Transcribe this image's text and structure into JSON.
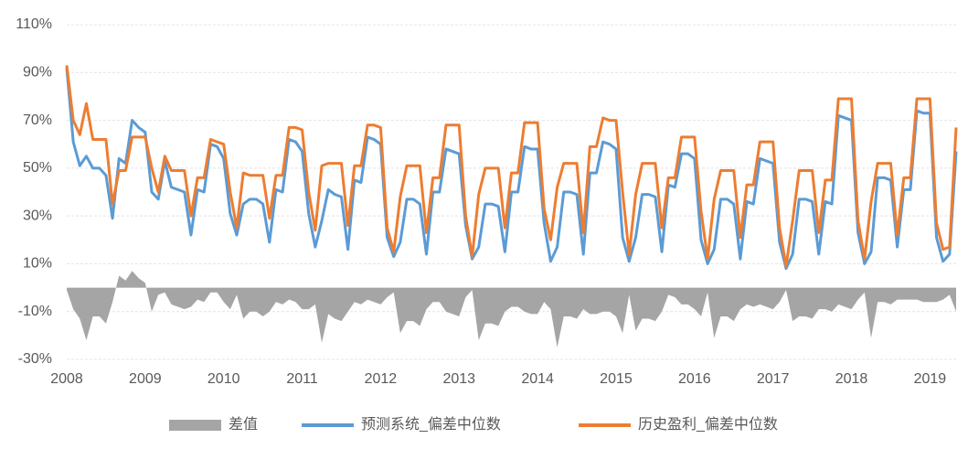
{
  "chart_data": {
    "type": "line",
    "categories": [
      "2008",
      null,
      null,
      null,
      null,
      null,
      null,
      null,
      null,
      null,
      null,
      null,
      "2009",
      null,
      null,
      null,
      null,
      null,
      null,
      null,
      null,
      null,
      null,
      null,
      "2010",
      null,
      null,
      null,
      null,
      null,
      null,
      null,
      null,
      null,
      null,
      null,
      "2011",
      null,
      null,
      null,
      null,
      null,
      null,
      null,
      null,
      null,
      null,
      null,
      "2012",
      null,
      null,
      null,
      null,
      null,
      null,
      null,
      null,
      null,
      null,
      null,
      "2013",
      null,
      null,
      null,
      null,
      null,
      null,
      null,
      null,
      null,
      null,
      null,
      "2014",
      null,
      null,
      null,
      null,
      null,
      null,
      null,
      null,
      null,
      null,
      null,
      "2015",
      null,
      null,
      null,
      null,
      null,
      null,
      null,
      null,
      null,
      null,
      null,
      "2016",
      null,
      null,
      null,
      null,
      null,
      null,
      null,
      null,
      null,
      null,
      null,
      "2017",
      null,
      null,
      null,
      null,
      null,
      null,
      null,
      null,
      null,
      null,
      null,
      "2018",
      null,
      null,
      null,
      null,
      null,
      null,
      null,
      null,
      null,
      null,
      null,
      "2019",
      null,
      null,
      null,
      null
    ],
    "series": [
      {
        "name": "差值",
        "type": "area",
        "color": "#a5a5a5",
        "values": [
          -1,
          -9,
          -13,
          -22,
          -12,
          -12,
          -15,
          -6,
          5,
          3,
          7,
          4,
          2,
          -10,
          -3,
          -2,
          -7,
          -8,
          -9,
          -8,
          -5,
          -6,
          -2,
          -2,
          -6,
          -9,
          -3,
          -13,
          -10,
          -10,
          -12,
          -10,
          -6,
          -7,
          -5,
          -6,
          -9,
          -9,
          -7,
          -23,
          -11,
          -13,
          -14,
          -10,
          -6,
          -7,
          -5,
          -6,
          -7,
          -4,
          -2,
          -19,
          -14,
          -14,
          -16,
          -9,
          -6,
          -6,
          -10,
          -11,
          -12,
          -4,
          -1,
          -22,
          -15,
          -15,
          -16,
          -10,
          -8,
          -8,
          -10,
          -11,
          -11,
          -6,
          -9,
          -25,
          -12,
          -12,
          -13,
          -9,
          -11,
          -11,
          -10,
          -10,
          -12,
          -19,
          -3,
          -18,
          -13,
          -13,
          -14,
          -10,
          -3,
          -4,
          -7,
          -7,
          -9,
          -12,
          -2,
          -21,
          -12,
          -12,
          -14,
          -9,
          -7,
          -8,
          -7,
          -8,
          -9,
          -6,
          -1,
          -14,
          -12,
          -12,
          -13,
          -9,
          -9,
          -10,
          -7,
          -8,
          -9,
          -5,
          -2,
          -21,
          -6,
          -6,
          -7,
          -5,
          -5,
          -5,
          -5,
          -6,
          -6,
          -6,
          -5,
          -3,
          -10
        ]
      },
      {
        "name": "预测系统_偏差中位数",
        "type": "line",
        "color": "#5b9bd5",
        "values": [
          92,
          61,
          51,
          55,
          50,
          50,
          47,
          29,
          54,
          52,
          70,
          67,
          65,
          40,
          37,
          53,
          42,
          41,
          40,
          22,
          41,
          40,
          60,
          59,
          54,
          31,
          22,
          35,
          37,
          37,
          35,
          19,
          41,
          40,
          62,
          61,
          57,
          31,
          17,
          28,
          41,
          39,
          38,
          16,
          45,
          44,
          63,
          62,
          60,
          21,
          13,
          19,
          37,
          37,
          35,
          14,
          40,
          40,
          58,
          57,
          56,
          26,
          12,
          17,
          35,
          35,
          34,
          15,
          40,
          40,
          59,
          58,
          58,
          27,
          11,
          17,
          40,
          40,
          39,
          14,
          48,
          48,
          61,
          60,
          58,
          21,
          11,
          21,
          39,
          39,
          38,
          15,
          43,
          42,
          56,
          56,
          54,
          20,
          10,
          16,
          37,
          37,
          35,
          12,
          36,
          35,
          54,
          53,
          52,
          19,
          8,
          14,
          37,
          37,
          36,
          14,
          36,
          35,
          72,
          71,
          70,
          23,
          10,
          15,
          46,
          46,
          45,
          17,
          41,
          41,
          74,
          73,
          73,
          21,
          11,
          14,
          57
        ]
      },
      {
        "name": "历史盈利_偏差中位数",
        "type": "line",
        "color": "#ed7d31",
        "values": [
          93,
          70,
          64,
          77,
          62,
          62,
          62,
          35,
          49,
          49,
          63,
          63,
          63,
          50,
          40,
          55,
          49,
          49,
          49,
          30,
          46,
          46,
          62,
          61,
          60,
          40,
          25,
          48,
          47,
          47,
          47,
          29,
          47,
          47,
          67,
          67,
          66,
          40,
          24,
          51,
          52,
          52,
          52,
          26,
          51,
          51,
          68,
          68,
          67,
          25,
          15,
          38,
          51,
          51,
          51,
          23,
          46,
          46,
          68,
          68,
          68,
          30,
          13,
          39,
          50,
          50,
          50,
          25,
          48,
          48,
          69,
          69,
          69,
          33,
          20,
          42,
          52,
          52,
          52,
          23,
          59,
          59,
          71,
          70,
          70,
          40,
          14,
          39,
          52,
          52,
          52,
          25,
          46,
          46,
          63,
          63,
          63,
          32,
          12,
          37,
          49,
          49,
          49,
          21,
          43,
          43,
          61,
          61,
          61,
          25,
          9,
          28,
          49,
          49,
          49,
          23,
          45,
          45,
          79,
          79,
          79,
          28,
          12,
          36,
          52,
          52,
          52,
          22,
          46,
          46,
          79,
          79,
          79,
          27,
          16,
          17,
          67
        ]
      }
    ],
    "ylim": [
      -30,
      110
    ],
    "yticks": [
      {
        "value": -30,
        "label": "-30%"
      },
      {
        "value": -10,
        "label": "-10%"
      },
      {
        "value": 10,
        "label": "10%"
      },
      {
        "value": 30,
        "label": "30%"
      },
      {
        "value": 50,
        "label": "50%"
      },
      {
        "value": 70,
        "label": "70%"
      },
      {
        "value": 90,
        "label": "90%"
      },
      {
        "value": 110,
        "label": "110%"
      }
    ],
    "grid": true,
    "legend": "bottom"
  }
}
